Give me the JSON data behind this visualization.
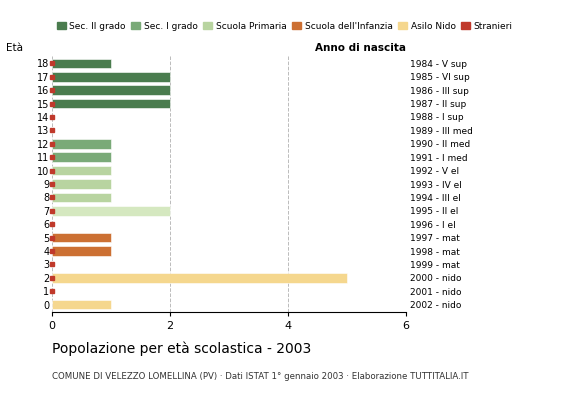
{
  "ages": [
    18,
    17,
    16,
    15,
    14,
    13,
    12,
    11,
    10,
    9,
    8,
    7,
    6,
    5,
    4,
    3,
    2,
    1,
    0
  ],
  "anno_nascita": [
    "1984 - V sup",
    "1985 - VI sup",
    "1986 - III sup",
    "1987 - II sup",
    "1988 - I sup",
    "1989 - III med",
    "1990 - II med",
    "1991 - I med",
    "1992 - V el",
    "1993 - IV el",
    "1994 - III el",
    "1995 - II el",
    "1996 - I el",
    "1997 - mat",
    "1998 - mat",
    "1999 - mat",
    "2000 - nido",
    "2001 - nido",
    "2002 - nido"
  ],
  "bars": [
    {
      "age": 18,
      "value": 1.0,
      "color": "#4a7c4e"
    },
    {
      "age": 17,
      "value": 2.0,
      "color": "#4a7c4e"
    },
    {
      "age": 16,
      "value": 2.0,
      "color": "#4a7c4e"
    },
    {
      "age": 15,
      "value": 2.0,
      "color": "#4a7c4e"
    },
    {
      "age": 14,
      "value": 0.0,
      "color": "#4a7c4e"
    },
    {
      "age": 13,
      "value": 0.0,
      "color": "#7aaa78"
    },
    {
      "age": 12,
      "value": 1.0,
      "color": "#7aaa78"
    },
    {
      "age": 11,
      "value": 1.0,
      "color": "#7aaa78"
    },
    {
      "age": 10,
      "value": 1.0,
      "color": "#b8d4a0"
    },
    {
      "age": 9,
      "value": 1.0,
      "color": "#b8d4a0"
    },
    {
      "age": 8,
      "value": 1.0,
      "color": "#b8d4a0"
    },
    {
      "age": 7,
      "value": 2.0,
      "color": "#d5e8c0"
    },
    {
      "age": 6,
      "value": 0.0,
      "color": "#d5e8c0"
    },
    {
      "age": 5,
      "value": 1.0,
      "color": "#cc7033"
    },
    {
      "age": 4,
      "value": 1.0,
      "color": "#cc7033"
    },
    {
      "age": 3,
      "value": 0.0,
      "color": "#cc7033"
    },
    {
      "age": 2,
      "value": 5.0,
      "color": "#f5d78e"
    },
    {
      "age": 1,
      "value": 0.0,
      "color": "#f5d78e"
    },
    {
      "age": 0,
      "value": 1.0,
      "color": "#f5d78e"
    }
  ],
  "stranieri_marker_ages": [
    18,
    17,
    16,
    15,
    14,
    13,
    12,
    11,
    10,
    9,
    8,
    7,
    6,
    5,
    4,
    3,
    2,
    1
  ],
  "colors": {
    "Sec. II grado": "#4a7c4e",
    "Sec. I grado": "#7aaa78",
    "Scuola Primaria": "#b8d4a0",
    "Scuola dell'Infanzia": "#cc7033",
    "Asilo Nido": "#f5d78e",
    "Stranieri": "#c0392b"
  },
  "xlim": [
    0,
    6
  ],
  "xticks": [
    0,
    2,
    4,
    6
  ],
  "title": "Popolazione per età scolastica - 2003",
  "subtitle": "COMUNE DI VELEZZO LOMELLINA (PV) · Dati ISTAT 1° gennaio 2003 · Elaborazione TUTTITALIA.IT",
  "background_color": "#ffffff",
  "grid_color": "#bbbbbb"
}
